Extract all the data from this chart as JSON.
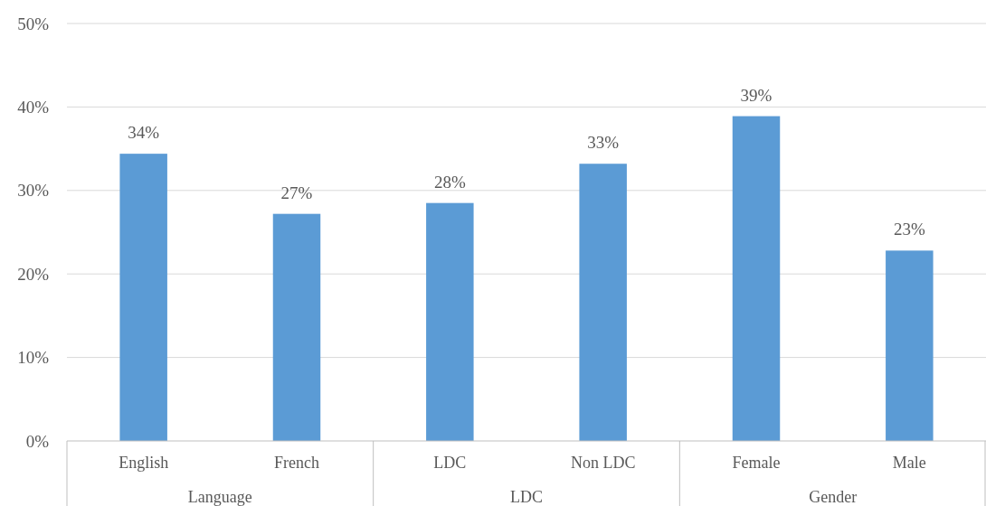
{
  "chart_data": {
    "type": "bar",
    "categories": [
      "English",
      "French",
      "LDC",
      "Non LDC",
      "Female",
      "Male"
    ],
    "values": [
      34.4,
      27.2,
      28.5,
      33.2,
      38.9,
      22.8
    ],
    "value_labels": [
      "34%",
      "27%",
      "28%",
      "33%",
      "39%",
      "23%"
    ],
    "color": "#5b9bd5",
    "ylim": [
      0,
      50
    ],
    "yticks": [
      {
        "value": 0,
        "label": "0%"
      },
      {
        "value": 10,
        "label": "10%"
      },
      {
        "value": 20,
        "label": "20%"
      },
      {
        "value": 30,
        "label": "30%"
      },
      {
        "value": 40,
        "label": "40%"
      },
      {
        "value": 50,
        "label": "50%"
      }
    ],
    "grid": "y",
    "annotations": [
      "Language",
      "LDC",
      "Gender"
    ]
  }
}
